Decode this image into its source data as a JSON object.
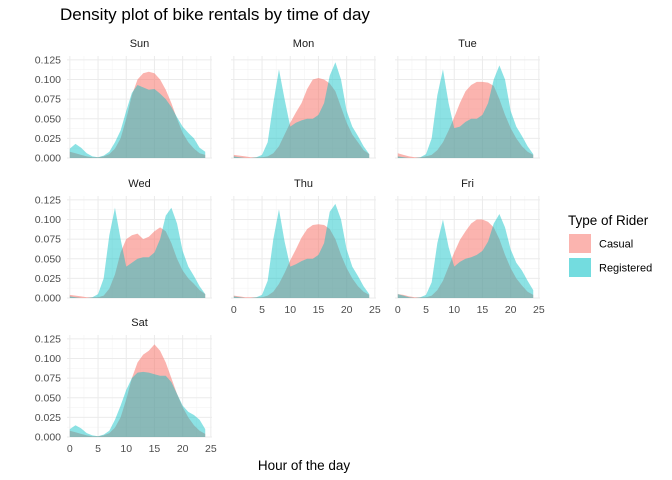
{
  "chart_data": {
    "type": "area",
    "title": "Density plot of bike rentals by time of day",
    "xlabel": "Hour of the day",
    "ylabel": "",
    "xlim": [
      0,
      24
    ],
    "ylim": [
      0,
      0.125
    ],
    "x_ticks": [
      0,
      5,
      10,
      15,
      20,
      25
    ],
    "y_ticks": [
      "0.000",
      "0.025",
      "0.050",
      "0.075",
      "0.100",
      "0.125"
    ],
    "grid": true,
    "legend": {
      "title": "Type of Rider",
      "placement": "right",
      "entries": [
        {
          "name": "Casual",
          "color": "#F8766D"
        },
        {
          "name": "Registered",
          "color": "#00BFC4"
        }
      ]
    },
    "x": [
      0,
      1,
      2,
      3,
      4,
      5,
      6,
      7,
      8,
      9,
      10,
      11,
      12,
      13,
      14,
      15,
      16,
      17,
      18,
      19,
      20,
      21,
      22,
      23,
      24
    ],
    "panels": [
      {
        "name": "Sun",
        "casual": [
          0.008,
          0.006,
          0.004,
          0.002,
          0.001,
          0.001,
          0.002,
          0.005,
          0.012,
          0.025,
          0.05,
          0.08,
          0.1,
          0.108,
          0.11,
          0.108,
          0.1,
          0.087,
          0.07,
          0.05,
          0.032,
          0.02,
          0.012,
          0.006,
          0.004
        ],
        "registered": [
          0.012,
          0.018,
          0.013,
          0.006,
          0.002,
          0.001,
          0.003,
          0.008,
          0.02,
          0.035,
          0.06,
          0.083,
          0.093,
          0.09,
          0.087,
          0.088,
          0.082,
          0.075,
          0.065,
          0.052,
          0.04,
          0.032,
          0.025,
          0.013,
          0.008
        ]
      },
      {
        "name": "Mon",
        "casual": [
          0.004,
          0.003,
          0.002,
          0.001,
          0.001,
          0.001,
          0.002,
          0.006,
          0.015,
          0.03,
          0.045,
          0.058,
          0.07,
          0.088,
          0.1,
          0.102,
          0.1,
          0.095,
          0.085,
          0.065,
          0.045,
          0.03,
          0.02,
          0.01,
          0.005
        ],
        "registered": [
          0.002,
          0.001,
          0.0,
          0.0,
          0.001,
          0.004,
          0.02,
          0.07,
          0.113,
          0.075,
          0.04,
          0.045,
          0.048,
          0.05,
          0.05,
          0.055,
          0.07,
          0.105,
          0.122,
          0.1,
          0.06,
          0.04,
          0.028,
          0.015,
          0.005
        ]
      },
      {
        "name": "Tue",
        "casual": [
          0.006,
          0.004,
          0.002,
          0.001,
          0.001,
          0.002,
          0.004,
          0.01,
          0.02,
          0.035,
          0.052,
          0.07,
          0.085,
          0.093,
          0.097,
          0.097,
          0.096,
          0.092,
          0.075,
          0.055,
          0.038,
          0.025,
          0.015,
          0.008,
          0.004
        ],
        "registered": [
          0.002,
          0.001,
          0.0,
          0.0,
          0.001,
          0.005,
          0.025,
          0.08,
          0.113,
          0.07,
          0.038,
          0.04,
          0.046,
          0.05,
          0.05,
          0.055,
          0.07,
          0.1,
          0.118,
          0.1,
          0.06,
          0.04,
          0.028,
          0.015,
          0.005
        ]
      },
      {
        "name": "Wed",
        "casual": [
          0.004,
          0.003,
          0.002,
          0.001,
          0.001,
          0.001,
          0.003,
          0.012,
          0.03,
          0.058,
          0.075,
          0.08,
          0.082,
          0.075,
          0.078,
          0.085,
          0.09,
          0.085,
          0.07,
          0.05,
          0.035,
          0.025,
          0.018,
          0.01,
          0.005
        ],
        "registered": [
          0.002,
          0.001,
          0.0,
          0.0,
          0.001,
          0.005,
          0.025,
          0.08,
          0.115,
          0.075,
          0.04,
          0.045,
          0.05,
          0.052,
          0.052,
          0.058,
          0.075,
          0.105,
          0.115,
          0.095,
          0.06,
          0.04,
          0.028,
          0.015,
          0.005
        ]
      },
      {
        "name": "Thu",
        "casual": [
          0.003,
          0.002,
          0.001,
          0.001,
          0.001,
          0.001,
          0.003,
          0.008,
          0.018,
          0.032,
          0.048,
          0.062,
          0.077,
          0.088,
          0.093,
          0.094,
          0.093,
          0.088,
          0.075,
          0.055,
          0.038,
          0.025,
          0.015,
          0.008,
          0.004
        ],
        "registered": [
          0.002,
          0.001,
          0.0,
          0.0,
          0.001,
          0.004,
          0.022,
          0.075,
          0.113,
          0.072,
          0.04,
          0.043,
          0.047,
          0.05,
          0.05,
          0.055,
          0.07,
          0.11,
          0.12,
          0.1,
          0.062,
          0.04,
          0.028,
          0.015,
          0.005
        ]
      },
      {
        "name": "Fri",
        "casual": [
          0.005,
          0.004,
          0.002,
          0.001,
          0.001,
          0.001,
          0.003,
          0.01,
          0.022,
          0.04,
          0.058,
          0.074,
          0.085,
          0.095,
          0.1,
          0.1,
          0.097,
          0.09,
          0.075,
          0.055,
          0.038,
          0.025,
          0.016,
          0.008,
          0.004
        ],
        "registered": [
          0.005,
          0.003,
          0.001,
          0.0,
          0.001,
          0.004,
          0.02,
          0.07,
          0.1,
          0.065,
          0.04,
          0.046,
          0.05,
          0.052,
          0.055,
          0.06,
          0.072,
          0.095,
          0.107,
          0.09,
          0.062,
          0.045,
          0.035,
          0.022,
          0.01
        ]
      },
      {
        "name": "Sat",
        "casual": [
          0.008,
          0.006,
          0.004,
          0.002,
          0.001,
          0.001,
          0.002,
          0.005,
          0.012,
          0.025,
          0.048,
          0.075,
          0.095,
          0.105,
          0.11,
          0.118,
          0.11,
          0.095,
          0.075,
          0.055,
          0.038,
          0.025,
          0.015,
          0.008,
          0.004
        ],
        "registered": [
          0.01,
          0.015,
          0.011,
          0.005,
          0.002,
          0.001,
          0.003,
          0.008,
          0.022,
          0.04,
          0.06,
          0.075,
          0.082,
          0.083,
          0.082,
          0.08,
          0.078,
          0.078,
          0.07,
          0.055,
          0.04,
          0.032,
          0.028,
          0.022,
          0.01
        ]
      }
    ]
  }
}
